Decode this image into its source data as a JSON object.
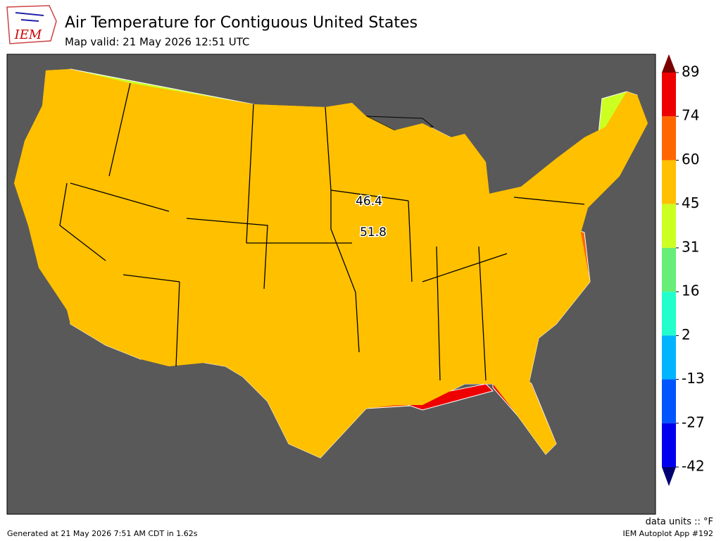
{
  "header": {
    "logo": "IEM",
    "title": "Air Temperature for Contiguous United States",
    "subtitle": "Map valid: 21 May 2026 12:51 UTC"
  },
  "map": {
    "contour_labels": [
      "46.4",
      "51.8"
    ]
  },
  "colorbar": {
    "ticks": [
      89,
      74,
      60,
      45,
      31,
      16,
      2,
      -13,
      -27,
      -42
    ],
    "colors": [
      "#ee0000",
      "#ff6600",
      "#ffc000",
      "#ccff22",
      "#66ee77",
      "#22ffcc",
      "#00b4ff",
      "#0055ff",
      "#0000ee"
    ],
    "over_color": "#7a0000",
    "under_color": "#000070",
    "units": "data units :: °F"
  },
  "footer": {
    "left": "Generated at 21 May 2026 7:51 AM CDT in 1.62s",
    "right": "IEM Autoplot App #192"
  }
}
